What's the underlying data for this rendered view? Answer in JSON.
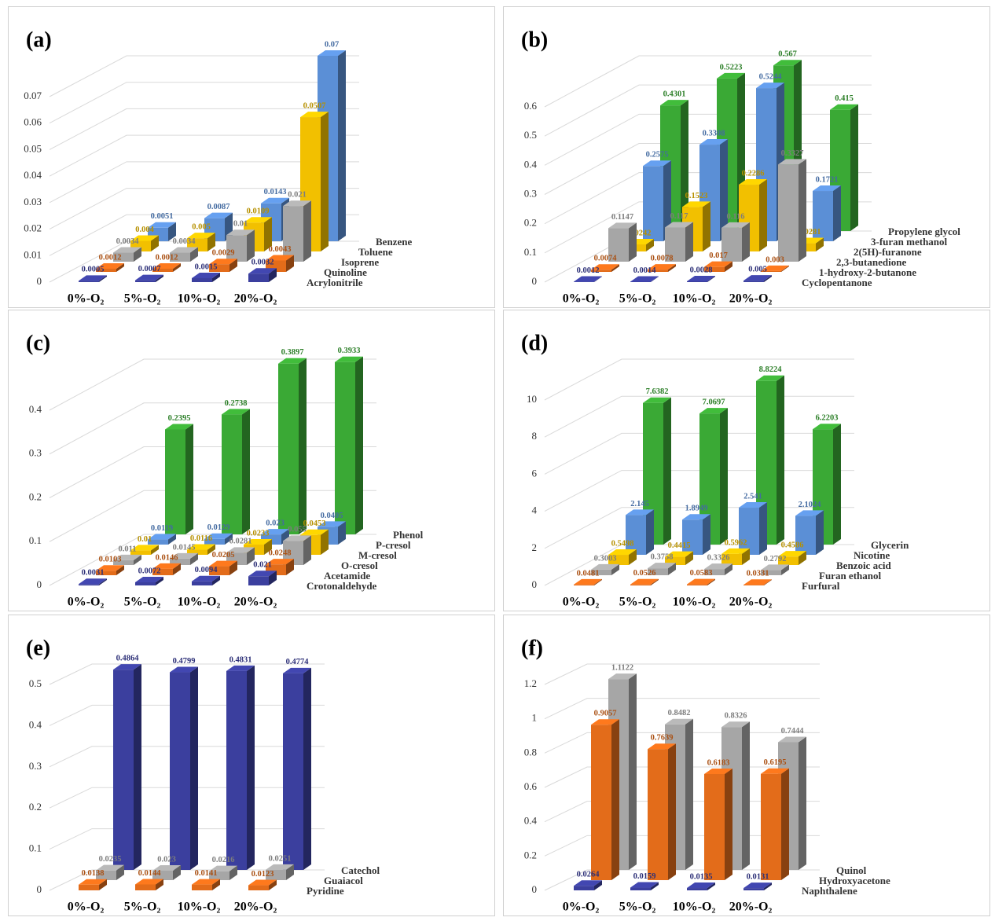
{
  "chart_data": [
    {
      "type": "bar",
      "title": "(a)",
      "categories": [
        "0%-O₂",
        "5%-O₂",
        "10%-O₂",
        "20%-O₂"
      ],
      "ylim": [
        0,
        0.07
      ],
      "yticks": [
        0,
        0.01,
        0.02,
        0.03,
        0.04,
        0.05,
        0.06,
        0.07
      ],
      "series": [
        {
          "name": "Acrylonitrile",
          "color": "#3b3f9e",
          "values": [
            0.0005,
            0.0007,
            0.0015,
            0.0032
          ]
        },
        {
          "name": "Quinoline",
          "color": "#e36c1a",
          "values": [
            0.0012,
            0.0012,
            0.0029,
            0.0043
          ]
        },
        {
          "name": "Isoprene",
          "color": "#a6a6a6",
          "values": [
            0.0034,
            0.0034,
            0.01,
            0.021
          ]
        },
        {
          "name": "Toluene",
          "color": "#f2c000",
          "values": [
            0.004,
            0.005,
            0.0109,
            0.0507
          ]
        },
        {
          "name": "Benzene",
          "color": "#5b8fd6",
          "values": [
            0.0051,
            0.0087,
            0.0143,
            0.07
          ]
        }
      ]
    },
    {
      "type": "bar",
      "title": "(b)",
      "categories": [
        "0%-O₂",
        "5%-O₂",
        "10%-O₂",
        "20%-O₂"
      ],
      "ylim": [
        0,
        0.6
      ],
      "yticks": [
        0,
        0.1,
        0.2,
        0.3,
        0.4,
        0.5,
        0.6
      ],
      "series": [
        {
          "name": "Cyclopentanone",
          "color": "#3b3f9e",
          "values": [
            0.0012,
            0.0014,
            0.0028,
            0.005
          ]
        },
        {
          "name": "1-hydroxy-2-butanone",
          "color": "#e36c1a",
          "values": [
            0.0074,
            0.0078,
            0.017,
            0.003
          ]
        },
        {
          "name": "2,3-butanedione",
          "color": "#a6a6a6",
          "values": [
            0.1147,
            0.117,
            0.116,
            0.3327
          ]
        },
        {
          "name": "2(5H)-furanone",
          "color": "#f2c000",
          "values": [
            0.0242,
            0.1523,
            0.2286,
            0.0281
          ]
        },
        {
          "name": "3-furan methanol",
          "color": "#5b8fd6",
          "values": [
            0.2575,
            0.3308,
            0.5244,
            0.1721
          ]
        },
        {
          "name": "Propylene glycol",
          "color": "#3aa935",
          "values": [
            0.4301,
            0.5223,
            0.567,
            0.415
          ]
        }
      ]
    },
    {
      "type": "bar",
      "title": "(c)",
      "categories": [
        "0%-O₂",
        "5%-O₂",
        "10%-O₂",
        "20%-O₂"
      ],
      "ylim": [
        0,
        0.4
      ],
      "yticks": [
        0,
        0.1,
        0.2,
        0.3,
        0.4
      ],
      "series": [
        {
          "name": "Crotonaldehyde",
          "color": "#3b3f9e",
          "values": [
            0.0031,
            0.0072,
            0.0094,
            0.021
          ]
        },
        {
          "name": "Acetamide",
          "color": "#e36c1a",
          "values": [
            0.0103,
            0.0146,
            0.0205,
            0.0248
          ]
        },
        {
          "name": "O-cresol",
          "color": "#a6a6a6",
          "values": [
            0.011,
            0.0145,
            0.0281,
            0.055
          ]
        },
        {
          "name": "M-cresol",
          "color": "#f2c000",
          "values": [
            0.01,
            0.0116,
            0.0233,
            0.0453
          ]
        },
        {
          "name": "P-cresol",
          "color": "#5b8fd6",
          "values": [
            0.0119,
            0.0129,
            0.023,
            0.0405
          ]
        },
        {
          "name": "Phenol",
          "color": "#3aa935",
          "values": [
            0.2395,
            0.2738,
            0.3897,
            0.3933
          ]
        }
      ]
    },
    {
      "type": "bar",
      "title": "(d)",
      "categories": [
        "0%-O₂",
        "5%-O₂",
        "10%-O₂",
        "20%-O₂"
      ],
      "ylim": [
        0,
        10
      ],
      "yticks": [
        0,
        2,
        4,
        6,
        8,
        10
      ],
      "series": [
        {
          "name": "Furfural",
          "color": "#e36c1a",
          "values": [
            0.0481,
            0.0526,
            0.0583,
            0.0331
          ]
        },
        {
          "name": "Furan ethanol",
          "color": "#a6a6a6",
          "values": [
            0.3003,
            0.3758,
            0.3326,
            0.2792
          ]
        },
        {
          "name": "Benzoic acid",
          "color": "#f2c000",
          "values": [
            0.5498,
            0.4415,
            0.5962,
            0.4586
          ]
        },
        {
          "name": "Nicotine",
          "color": "#5b8fd6",
          "values": [
            2.145,
            1.8949,
            2.541,
            2.1024
          ]
        },
        {
          "name": "Glycerin",
          "color": "#3aa935",
          "values": [
            7.6382,
            7.0697,
            8.8224,
            6.2203
          ]
        }
      ]
    },
    {
      "type": "bar",
      "title": "(e)",
      "categories": [
        "0%-O₂",
        "5%-O₂",
        "10%-O₂",
        "20%-O₂"
      ],
      "ylim": [
        0,
        0.5
      ],
      "yticks": [
        0,
        0.1,
        0.2,
        0.3,
        0.4,
        0.5
      ],
      "series": [
        {
          "name": "Pyridine",
          "color": "#e36c1a",
          "values": [
            0.0138,
            0.0144,
            0.0141,
            0.0123
          ]
        },
        {
          "name": "Guaiacol",
          "color": "#a6a6a6",
          "values": [
            0.0235,
            0.023,
            0.0216,
            0.0251
          ]
        },
        {
          "name": "Catechol",
          "color": "#3b3f9e",
          "values": [
            0.4864,
            0.4799,
            0.4831,
            0.4774
          ]
        }
      ]
    },
    {
      "type": "bar",
      "title": "(f)",
      "categories": [
        "0%-O₂",
        "5%-O₂",
        "10%-O₂",
        "20%-O₂"
      ],
      "ylim": [
        0,
        1.2
      ],
      "yticks": [
        0,
        0.2,
        0.4,
        0.6,
        0.8,
        1,
        1.2
      ],
      "series": [
        {
          "name": "Naphthalene",
          "color": "#3b3f9e",
          "values": [
            0.0264,
            0.0159,
            0.0135,
            0.0131
          ]
        },
        {
          "name": "Hydroxyacetone",
          "color": "#e36c1a",
          "values": [
            0.9057,
            0.7639,
            0.6183,
            0.6195
          ]
        },
        {
          "name": "Quinol",
          "color": "#a6a6a6",
          "values": [
            1.1122,
            0.8482,
            0.8326,
            0.7444
          ]
        }
      ]
    }
  ]
}
